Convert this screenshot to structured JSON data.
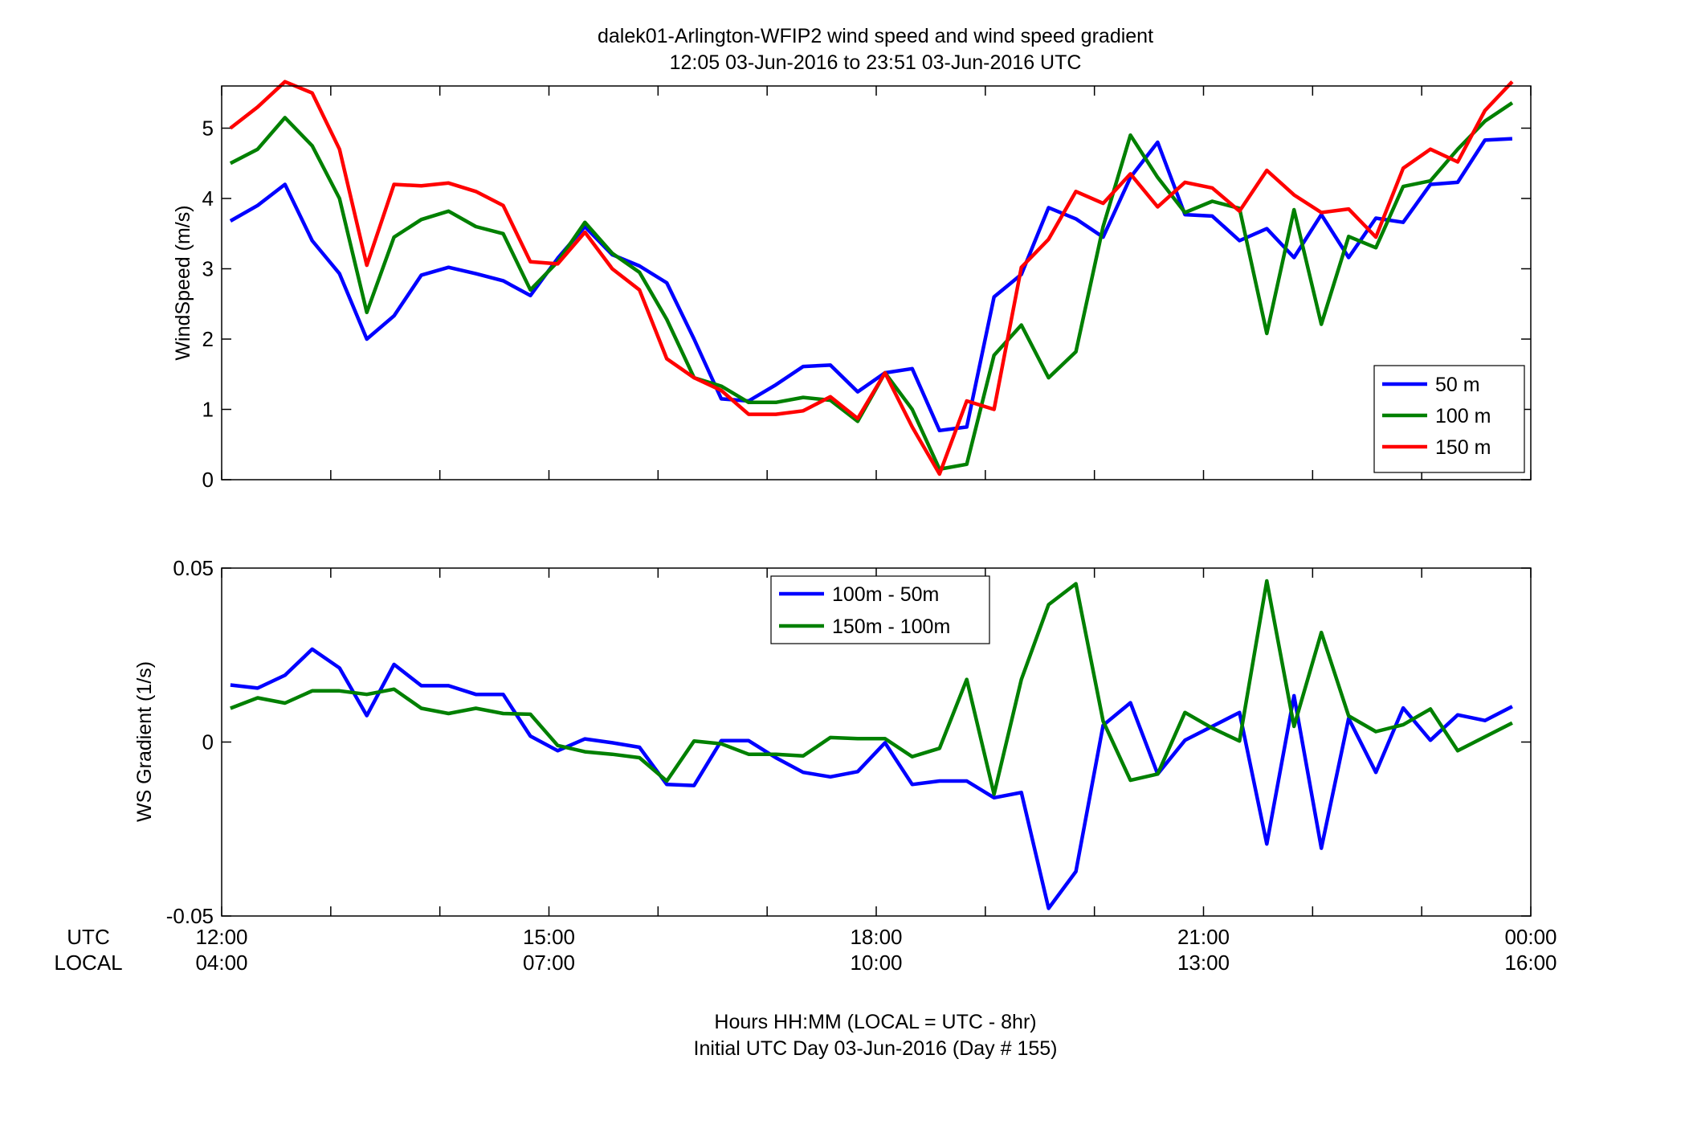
{
  "title": {
    "line1": "dalek01-Arlington-WFIP2  wind speed and wind speed gradient",
    "line2": "12:05 03-Jun-2016 to 23:51 03-Jun-2016  UTC"
  },
  "xaxis": {
    "label_line1": "Hours HH:MM  (LOCAL = UTC - 8hr)",
    "label_line2": "Initial UTC Day 03-Jun-2016 (Day # 155)",
    "row_utc": "UTC",
    "row_local": "LOCAL",
    "range_hours": [
      12,
      24
    ],
    "ticks": [
      {
        "hour": 12,
        "utc": "12:00",
        "local": "04:00"
      },
      {
        "hour": 15,
        "utc": "15:00",
        "local": "07:00"
      },
      {
        "hour": 18,
        "utc": "18:00",
        "local": "10:00"
      },
      {
        "hour": 21,
        "utc": "21:00",
        "local": "13:00"
      },
      {
        "hour": 24,
        "utc": "00:00",
        "local": "16:00"
      }
    ]
  },
  "colors": {
    "blue": "#0000ff",
    "green": "#008000",
    "red": "#ff0000"
  },
  "chart_data": [
    {
      "type": "line",
      "ylabel": "WindSpeed (m/s)",
      "ylim": [
        0,
        5.6
      ],
      "yticks": [
        0,
        1,
        2,
        3,
        4,
        5
      ],
      "ytick_labels": [
        "0",
        "1",
        "2",
        "3",
        "4",
        "5"
      ],
      "legend_position": "bottom-right",
      "x": [
        12.08,
        12.33,
        12.58,
        12.83,
        13.08,
        13.33,
        13.58,
        13.83,
        14.08,
        14.33,
        14.58,
        14.83,
        15.08,
        15.33,
        15.58,
        15.83,
        16.08,
        16.33,
        16.58,
        16.83,
        17.08,
        17.33,
        17.58,
        17.83,
        18.08,
        18.33,
        18.58,
        18.83,
        19.08,
        19.33,
        19.58,
        19.83,
        20.08,
        20.33,
        20.58,
        20.83,
        21.08,
        21.33,
        21.58,
        21.83,
        22.08,
        22.33,
        22.58,
        22.83,
        23.08,
        23.33,
        23.58,
        23.83
      ],
      "series": [
        {
          "name": "50 m",
          "color": "#0000ff",
          "values": [
            3.68,
            3.9,
            4.2,
            3.4,
            2.93,
            2.0,
            2.33,
            2.91,
            3.02,
            2.93,
            2.83,
            2.62,
            3.15,
            3.6,
            3.2,
            3.04,
            2.8,
            2.0,
            1.15,
            1.12,
            1.35,
            1.61,
            1.63,
            1.25,
            1.52,
            1.58,
            0.7,
            0.75,
            2.6,
            2.92,
            3.87,
            3.71,
            3.45,
            4.3,
            4.8,
            3.77,
            3.75,
            3.4,
            3.57,
            3.16,
            3.77,
            3.16,
            3.72,
            3.66,
            4.2,
            4.23,
            4.83,
            4.85
          ]
        },
        {
          "name": "100 m",
          "color": "#008000",
          "values": [
            4.5,
            4.7,
            5.15,
            4.75,
            4.0,
            2.38,
            3.45,
            3.7,
            3.82,
            3.6,
            3.5,
            2.7,
            3.1,
            3.66,
            3.22,
            2.95,
            2.28,
            1.45,
            1.33,
            1.1,
            1.1,
            1.17,
            1.13,
            0.83,
            1.52,
            1.0,
            0.15,
            0.22,
            1.77,
            2.2,
            1.45,
            1.82,
            3.6,
            4.9,
            4.3,
            3.8,
            3.96,
            3.86,
            2.08,
            3.84,
            2.21,
            3.46,
            3.3,
            4.17,
            4.25,
            4.7,
            5.1,
            5.36
          ]
        },
        {
          "name": "150 m",
          "color": "#ff0000",
          "values": [
            5.0,
            5.3,
            5.66,
            5.5,
            4.7,
            3.05,
            4.2,
            4.18,
            4.22,
            4.1,
            3.9,
            3.1,
            3.07,
            3.52,
            3.0,
            2.7,
            1.72,
            1.45,
            1.27,
            0.93,
            0.93,
            0.98,
            1.18,
            0.87,
            1.52,
            0.75,
            0.08,
            1.12,
            1.0,
            3.02,
            3.42,
            4.1,
            3.93,
            4.35,
            3.88,
            4.23,
            4.15,
            3.82,
            4.4,
            4.05,
            3.8,
            3.85,
            3.45,
            4.43,
            4.7,
            4.52,
            5.25,
            5.66
          ]
        }
      ]
    },
    {
      "type": "line",
      "ylabel": "WS Gradient (1/s)",
      "ylim": [
        -0.05,
        0.05
      ],
      "yticks": [
        -0.05,
        0,
        0.05
      ],
      "ytick_labels": [
        "-0.05",
        "0",
        "0.05"
      ],
      "legend_position": "top-center",
      "x": [
        12.08,
        12.33,
        12.58,
        12.83,
        13.08,
        13.33,
        13.58,
        13.83,
        14.08,
        14.33,
        14.58,
        14.83,
        15.08,
        15.33,
        15.58,
        15.83,
        16.08,
        16.33,
        16.58,
        16.83,
        17.08,
        17.33,
        17.58,
        17.83,
        18.08,
        18.33,
        18.58,
        18.83,
        19.08,
        19.33,
        19.58,
        19.83,
        20.08,
        20.33,
        20.58,
        20.83,
        21.08,
        21.33,
        21.58,
        21.83,
        22.08,
        22.33,
        22.58,
        22.83,
        23.08,
        23.33,
        23.58,
        23.83
      ],
      "series": [
        {
          "name": "100m - 50m",
          "color": "#0000ff",
          "values": [
            0.0164,
            0.0155,
            0.0192,
            0.0267,
            0.0213,
            0.0076,
            0.0223,
            0.0162,
            0.0162,
            0.0137,
            0.0137,
            0.0017,
            -0.0025,
            0.0009,
            -0.0002,
            -0.0015,
            -0.0122,
            -0.0125,
            0.0004,
            0.0004,
            -0.0045,
            -0.0087,
            -0.01,
            -0.0085,
            -0.0002,
            -0.0122,
            -0.0112,
            -0.0112,
            -0.016,
            -0.0145,
            -0.0478,
            -0.0372,
            0.0048,
            0.0113,
            -0.0092,
            0.0005,
            0.0045,
            0.0085,
            -0.0293,
            0.0133,
            -0.0305,
            0.0068,
            -0.0087,
            0.0098,
            0.0005,
            0.0078,
            0.0062,
            0.0102
          ]
        },
        {
          "name": "150m - 100m",
          "color": "#008000",
          "values": [
            0.0097,
            0.0127,
            0.0112,
            0.0147,
            0.0147,
            0.0137,
            0.0152,
            0.0097,
            0.0082,
            0.0097,
            0.0082,
            0.008,
            -0.001,
            -0.0028,
            -0.0035,
            -0.0045,
            -0.0112,
            0.0003,
            -0.0005,
            -0.0035,
            -0.0035,
            -0.004,
            0.0013,
            0.001,
            0.001,
            -0.0042,
            -0.0018,
            0.018,
            -0.015,
            0.018,
            0.0395,
            0.0455,
            0.006,
            -0.011,
            -0.0092,
            0.0085,
            0.004,
            0.0003,
            0.0463,
            0.0045,
            0.0315,
            0.0075,
            0.003,
            0.005,
            0.0095,
            -0.0025,
            0.0015,
            0.0055
          ]
        }
      ]
    }
  ]
}
